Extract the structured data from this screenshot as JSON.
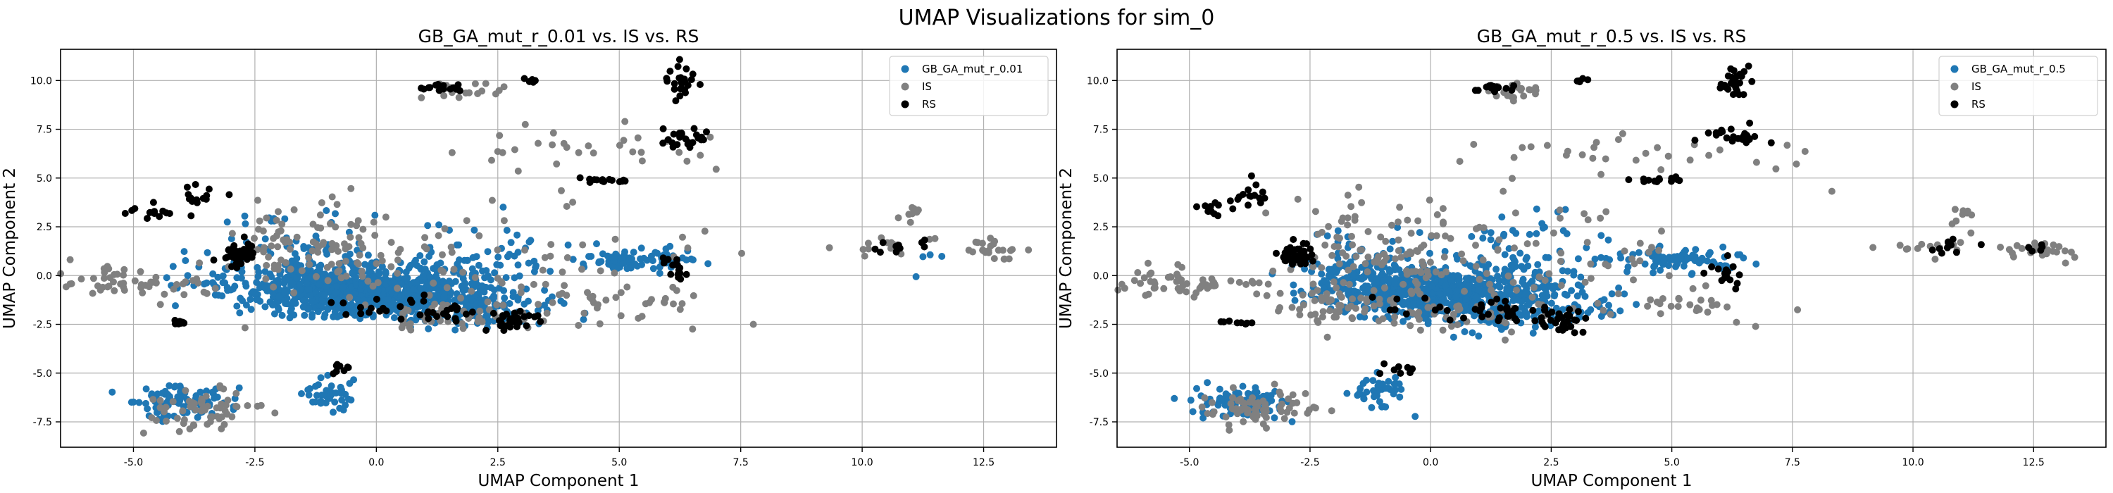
{
  "suptitle": "UMAP Visualizations for sim_0",
  "colors": {
    "GB": "#1f77b4",
    "IS": "#808080",
    "RS": "#000000",
    "grid": "#b0b0b0"
  },
  "chart_data": [
    {
      "type": "scatter",
      "title": "GB_GA_mut_r_0.01 vs. IS vs. RS",
      "xlabel": "UMAP Component 1",
      "ylabel": "UMAP Component 2",
      "xlim": [
        -6.5,
        14
      ],
      "ylim": [
        -8.8,
        11.6
      ],
      "xticks": [
        -5.0,
        -2.5,
        0.0,
        2.5,
        5.0,
        7.5,
        10.0,
        12.5
      ],
      "yticks": [
        -7.5,
        -5.0,
        -2.5,
        0.0,
        2.5,
        5.0,
        7.5,
        10.0
      ],
      "grid": true,
      "legend": "top-right",
      "series": [
        {
          "name": "GB_GA_mut_r_0.01",
          "color": "#1f77b4",
          "clusters": [
            {
              "cx": -0.5,
              "cy": -0.8,
              "sx": 1.1,
              "sy": 0.6,
              "n": 700
            },
            {
              "cx": 1.2,
              "cy": -1.2,
              "sx": 1.0,
              "sy": 0.8,
              "n": 200
            },
            {
              "cx": -1.5,
              "cy": 0.5,
              "sx": 0.8,
              "sy": 1.2,
              "n": 120
            },
            {
              "cx": 5.3,
              "cy": 0.8,
              "sx": 0.6,
              "sy": 0.3,
              "n": 80
            },
            {
              "cx": -4.0,
              "cy": -6.5,
              "sx": 0.5,
              "sy": 0.4,
              "n": 90
            },
            {
              "cx": -1.0,
              "cy": -6.0,
              "sx": 0.3,
              "sy": 0.4,
              "n": 40
            },
            {
              "cx": 2.0,
              "cy": 1.0,
              "sx": 0.8,
              "sy": 1.0,
              "n": 60
            },
            {
              "cx": 2.5,
              "cy": -1.8,
              "sx": 0.8,
              "sy": 0.4,
              "n": 50
            },
            {
              "cx": -3.3,
              "cy": 0.0,
              "sx": 0.6,
              "sy": 0.8,
              "n": 30
            },
            {
              "cx": 11.2,
              "cy": 0.9,
              "sx": 0.3,
              "sy": 0.6,
              "n": 4
            }
          ]
        },
        {
          "name": "IS",
          "color": "#808080",
          "clusters": [
            {
              "cx": -1.2,
              "cy": 1.5,
              "sx": 1.0,
              "sy": 1.2,
              "n": 100
            },
            {
              "cx": -3.5,
              "cy": -6.8,
              "sx": 0.6,
              "sy": 0.5,
              "n": 60
            },
            {
              "cx": -5.5,
              "cy": -0.3,
              "sx": 0.5,
              "sy": 0.4,
              "n": 40
            },
            {
              "cx": 2.5,
              "cy": 0.5,
              "sx": 2.0,
              "sy": 1.5,
              "n": 80
            },
            {
              "cx": 1.7,
              "cy": 9.5,
              "sx": 0.4,
              "sy": 0.2,
              "n": 20
            },
            {
              "cx": 4.5,
              "cy": 6.5,
              "sx": 1.5,
              "sy": 0.6,
              "n": 30
            },
            {
              "cx": 12.7,
              "cy": 1.3,
              "sx": 0.3,
              "sy": 0.3,
              "n": 25
            },
            {
              "cx": 10.5,
              "cy": 1.5,
              "sx": 0.6,
              "sy": 0.3,
              "n": 15
            },
            {
              "cx": 11.0,
              "cy": 3.2,
              "sx": 0.1,
              "sy": 0.3,
              "n": 8
            },
            {
              "cx": 5.5,
              "cy": -1.5,
              "sx": 0.8,
              "sy": 0.5,
              "n": 25
            },
            {
              "cx": -4.2,
              "cy": -0.5,
              "sx": 0.5,
              "sy": 0.3,
              "n": 15
            },
            {
              "cx": 1.8,
              "cy": -2.0,
              "sx": 0.8,
              "sy": 0.4,
              "n": 40
            }
          ]
        },
        {
          "name": "RS",
          "color": "#000000",
          "clusters": [
            {
              "cx": -2.8,
              "cy": 1.1,
              "sx": 0.2,
              "sy": 0.3,
              "n": 50
            },
            {
              "cx": 1.3,
              "cy": 9.6,
              "sx": 0.2,
              "sy": 0.1,
              "n": 15
            },
            {
              "cx": 6.3,
              "cy": 9.9,
              "sx": 0.15,
              "sy": 0.4,
              "n": 25
            },
            {
              "cx": 6.4,
              "cy": 7.2,
              "sx": 0.3,
              "sy": 0.3,
              "n": 25
            },
            {
              "cx": 4.7,
              "cy": 4.9,
              "sx": 0.3,
              "sy": 0.06,
              "n": 15
            },
            {
              "cx": 2.7,
              "cy": -2.3,
              "sx": 0.3,
              "sy": 0.3,
              "n": 30
            },
            {
              "cx": -3.7,
              "cy": 4.0,
              "sx": 0.2,
              "sy": 0.4,
              "n": 15
            },
            {
              "cx": -4.6,
              "cy": 3.3,
              "sx": 0.3,
              "sy": 0.2,
              "n": 12
            },
            {
              "cx": 6.1,
              "cy": 0.2,
              "sx": 0.2,
              "sy": 0.5,
              "n": 15
            },
            {
              "cx": -4.0,
              "cy": -2.4,
              "sx": 0.2,
              "sy": 0.06,
              "n": 8
            },
            {
              "cx": -0.8,
              "cy": -4.8,
              "sx": 0.15,
              "sy": 0.2,
              "n": 8
            },
            {
              "cx": 0.3,
              "cy": -1.6,
              "sx": 0.8,
              "sy": 0.4,
              "n": 20
            },
            {
              "cx": 10.8,
              "cy": 1.5,
              "sx": 0.3,
              "sy": 0.2,
              "n": 10
            },
            {
              "cx": 3.2,
              "cy": 10.0,
              "sx": 0.1,
              "sy": 0.05,
              "n": 5
            },
            {
              "cx": 1.5,
              "cy": -1.9,
              "sx": 0.4,
              "sy": 0.2,
              "n": 15
            }
          ]
        }
      ]
    },
    {
      "type": "scatter",
      "title": "GB_GA_mut_r_0.5 vs. IS vs. RS",
      "xlabel": "UMAP Component 1",
      "ylabel": "UMAP Component 2",
      "xlim": [
        -6.5,
        14
      ],
      "ylim": [
        -8.8,
        11.6
      ],
      "xticks": [
        -5.0,
        -2.5,
        0.0,
        2.5,
        5.0,
        7.5,
        10.0,
        12.5
      ],
      "yticks": [
        -7.5,
        -5.0,
        -2.5,
        0.0,
        2.5,
        5.0,
        7.5,
        10.0
      ],
      "grid": true,
      "legend": "top-right",
      "series": [
        {
          "name": "GB_GA_mut_r_0.5",
          "color": "#1f77b4",
          "clusters": [
            {
              "cx": -0.2,
              "cy": -0.8,
              "sx": 1.0,
              "sy": 0.6,
              "n": 600
            },
            {
              "cx": 1.5,
              "cy": -1.2,
              "sx": 1.0,
              "sy": 0.8,
              "n": 180
            },
            {
              "cx": -1.2,
              "cy": 0.4,
              "sx": 0.8,
              "sy": 1.0,
              "n": 100
            },
            {
              "cx": 5.2,
              "cy": 0.8,
              "sx": 0.6,
              "sy": 0.3,
              "n": 80
            },
            {
              "cx": -4.0,
              "cy": -6.5,
              "sx": 0.5,
              "sy": 0.4,
              "n": 90
            },
            {
              "cx": -1.0,
              "cy": -6.0,
              "sx": 0.3,
              "sy": 0.4,
              "n": 40
            },
            {
              "cx": 2.0,
              "cy": 1.0,
              "sx": 0.8,
              "sy": 1.0,
              "n": 60
            },
            {
              "cx": 2.5,
              "cy": -1.8,
              "sx": 0.8,
              "sy": 0.4,
              "n": 50
            }
          ]
        },
        {
          "name": "IS",
          "color": "#808080",
          "clusters": [
            {
              "cx": -1.2,
              "cy": 1.5,
              "sx": 1.0,
              "sy": 1.2,
              "n": 100
            },
            {
              "cx": -3.5,
              "cy": -6.8,
              "sx": 0.6,
              "sy": 0.5,
              "n": 70
            },
            {
              "cx": -5.5,
              "cy": -0.3,
              "sx": 0.5,
              "sy": 0.4,
              "n": 40
            },
            {
              "cx": 2.5,
              "cy": 0.5,
              "sx": 2.0,
              "sy": 1.5,
              "n": 80
            },
            {
              "cx": 1.7,
              "cy": 9.5,
              "sx": 0.4,
              "sy": 0.2,
              "n": 20
            },
            {
              "cx": 4.5,
              "cy": 6.5,
              "sx": 1.5,
              "sy": 0.6,
              "n": 30
            },
            {
              "cx": 12.7,
              "cy": 1.3,
              "sx": 0.3,
              "sy": 0.3,
              "n": 25
            },
            {
              "cx": 10.5,
              "cy": 1.5,
              "sx": 0.6,
              "sy": 0.3,
              "n": 15
            },
            {
              "cx": 11.0,
              "cy": 3.2,
              "sx": 0.1,
              "sy": 0.3,
              "n": 8
            },
            {
              "cx": 5.5,
              "cy": -1.5,
              "sx": 0.8,
              "sy": 0.5,
              "n": 25
            },
            {
              "cx": -4.2,
              "cy": -0.5,
              "sx": 0.5,
              "sy": 0.3,
              "n": 15
            },
            {
              "cx": -2.0,
              "cy": -1.5,
              "sx": 0.6,
              "sy": 0.6,
              "n": 40
            },
            {
              "cx": 0.5,
              "cy": -2.0,
              "sx": 1.5,
              "sy": 0.5,
              "n": 50
            }
          ]
        },
        {
          "name": "RS",
          "color": "#000000",
          "clusters": [
            {
              "cx": -2.8,
              "cy": 1.1,
              "sx": 0.2,
              "sy": 0.3,
              "n": 50
            },
            {
              "cx": 1.3,
              "cy": 9.6,
              "sx": 0.2,
              "sy": 0.1,
              "n": 15
            },
            {
              "cx": 6.3,
              "cy": 9.9,
              "sx": 0.15,
              "sy": 0.4,
              "n": 25
            },
            {
              "cx": 6.4,
              "cy": 7.2,
              "sx": 0.3,
              "sy": 0.3,
              "n": 25
            },
            {
              "cx": 4.7,
              "cy": 4.9,
              "sx": 0.3,
              "sy": 0.06,
              "n": 15
            },
            {
              "cx": 2.7,
              "cy": -2.3,
              "sx": 0.3,
              "sy": 0.3,
              "n": 30
            },
            {
              "cx": -3.7,
              "cy": 4.0,
              "sx": 0.2,
              "sy": 0.4,
              "n": 15
            },
            {
              "cx": -4.6,
              "cy": 3.3,
              "sx": 0.3,
              "sy": 0.2,
              "n": 12
            },
            {
              "cx": 6.1,
              "cy": 0.2,
              "sx": 0.2,
              "sy": 0.5,
              "n": 15
            },
            {
              "cx": -4.0,
              "cy": -2.4,
              "sx": 0.2,
              "sy": 0.06,
              "n": 8
            },
            {
              "cx": -0.8,
              "cy": -4.8,
              "sx": 0.15,
              "sy": 0.2,
              "n": 8
            },
            {
              "cx": 0.3,
              "cy": -1.6,
              "sx": 0.8,
              "sy": 0.4,
              "n": 20
            },
            {
              "cx": 10.8,
              "cy": 1.5,
              "sx": 0.3,
              "sy": 0.2,
              "n": 10
            },
            {
              "cx": 12.6,
              "cy": 1.4,
              "sx": 0.1,
              "sy": 0.1,
              "n": 5
            },
            {
              "cx": 3.2,
              "cy": 10.0,
              "sx": 0.1,
              "sy": 0.05,
              "n": 5
            },
            {
              "cx": 1.5,
              "cy": -1.9,
              "sx": 0.4,
              "sy": 0.2,
              "n": 15
            }
          ]
        }
      ]
    }
  ]
}
